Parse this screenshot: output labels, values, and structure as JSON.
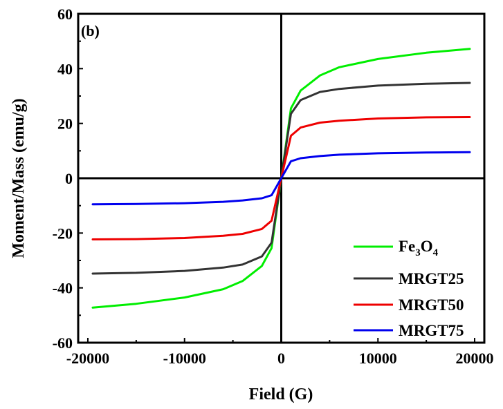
{
  "chart_data": {
    "type": "line",
    "panel_label": "(b)",
    "xlabel": "Field (G)",
    "ylabel": "Moment/Mass (emu/g)",
    "xlim": [
      -21000,
      21000
    ],
    "ylim": [
      -60,
      60
    ],
    "xticks": [
      -20000,
      -10000,
      0,
      10000,
      20000
    ],
    "xtick_labels": [
      "-20000",
      "-10000",
      "0",
      "10000",
      "20000"
    ],
    "yticks": [
      -60,
      -40,
      -20,
      0,
      20,
      40,
      60
    ],
    "ytick_labels": [
      "-60",
      "-40",
      "-20",
      "0",
      "20",
      "40",
      "60"
    ],
    "legend_position": "bottom-right",
    "series": [
      {
        "name": "Fe3O4",
        "legend_base": "Fe",
        "legend_sub1": "3",
        "legend_mid": "O",
        "legend_sub2": "4",
        "color": "#00ee00",
        "x": [
          -19500,
          -15000,
          -10000,
          -6000,
          -4000,
          -2000,
          -1000,
          0,
          1000,
          2000,
          4000,
          6000,
          10000,
          15000,
          19500
        ],
        "y": [
          -47.2,
          -45.8,
          -43.5,
          -40.5,
          -37.5,
          -32.0,
          -25.5,
          0,
          25.5,
          32.0,
          37.5,
          40.5,
          43.5,
          45.8,
          47.2
        ]
      },
      {
        "name": "MRGT25",
        "color": "#333333",
        "x": [
          -19500,
          -15000,
          -10000,
          -6000,
          -4000,
          -2000,
          -1000,
          0,
          1000,
          2000,
          4000,
          6000,
          10000,
          15000,
          19500
        ],
        "y": [
          -34.8,
          -34.5,
          -33.8,
          -32.6,
          -31.5,
          -28.5,
          -23.5,
          0,
          23.5,
          28.5,
          31.5,
          32.6,
          33.8,
          34.5,
          34.8
        ]
      },
      {
        "name": "MRGT50",
        "color": "#ee0000",
        "x": [
          -19500,
          -15000,
          -10000,
          -6000,
          -4000,
          -2000,
          -1000,
          0,
          1000,
          2000,
          4000,
          6000,
          10000,
          15000,
          19500
        ],
        "y": [
          -22.3,
          -22.2,
          -21.8,
          -21.0,
          -20.3,
          -18.5,
          -15.5,
          0,
          15.5,
          18.5,
          20.3,
          21.0,
          21.8,
          22.2,
          22.3
        ]
      },
      {
        "name": "MRGT75",
        "color": "#0000ee",
        "x": [
          -19500,
          -15000,
          -10000,
          -6000,
          -4000,
          -2000,
          -1000,
          0,
          1000,
          2000,
          4000,
          6000,
          10000,
          15000,
          19500
        ],
        "y": [
          -9.5,
          -9.4,
          -9.1,
          -8.6,
          -8.1,
          -7.3,
          -6.2,
          0,
          6.2,
          7.3,
          8.1,
          8.6,
          9.1,
          9.4,
          9.5
        ]
      }
    ]
  }
}
